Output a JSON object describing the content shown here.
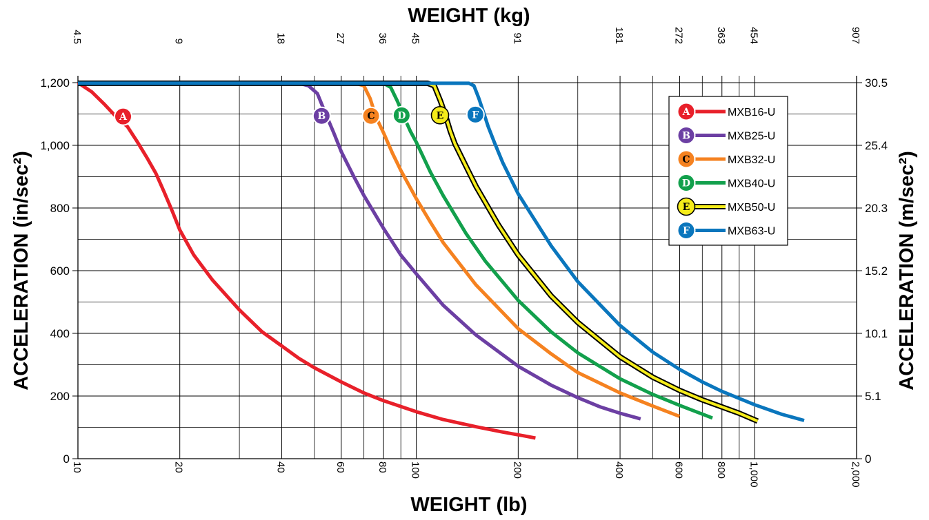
{
  "chart_data": {
    "type": "line",
    "title": "",
    "top_xlabel": "WEIGHT (kg)",
    "xlabel": "WEIGHT (lb)",
    "ylabel": "ACCELERATION (in/sec²)",
    "ylabel_right": "ACCELERATION (m/sec²)",
    "x_scale": "log",
    "xlim": [
      10,
      2000
    ],
    "ylim": [
      0,
      1200
    ],
    "grid": true,
    "legend_position": "top-right",
    "x_ticks_bottom": [
      {
        "value": 10,
        "label": "10"
      },
      {
        "value": 20,
        "label": "20"
      },
      {
        "value": 40,
        "label": "40"
      },
      {
        "value": 60,
        "label": "60"
      },
      {
        "value": 80,
        "label": "80"
      },
      {
        "value": 100,
        "label": "100"
      },
      {
        "value": 200,
        "label": "200"
      },
      {
        "value": 400,
        "label": "400"
      },
      {
        "value": 600,
        "label": "600"
      },
      {
        "value": 800,
        "label": "800"
      },
      {
        "value": 1000,
        "label": "1,000"
      },
      {
        "value": 2000,
        "label": "2,000"
      }
    ],
    "x_ticks_top": [
      {
        "value": 10,
        "label": "4.5"
      },
      {
        "value": 20,
        "label": "9"
      },
      {
        "value": 40,
        "label": "18"
      },
      {
        "value": 60,
        "label": "27"
      },
      {
        "value": 80,
        "label": "36"
      },
      {
        "value": 100,
        "label": "45"
      },
      {
        "value": 200,
        "label": "91"
      },
      {
        "value": 400,
        "label": "181"
      },
      {
        "value": 600,
        "label": "272"
      },
      {
        "value": 800,
        "label": "363"
      },
      {
        "value": 1000,
        "label": "454"
      },
      {
        "value": 2000,
        "label": "907"
      }
    ],
    "extra_vlines": [
      30,
      50,
      70,
      90,
      300,
      500,
      700,
      900
    ],
    "y_ticks_left": [
      {
        "value": 0,
        "label": "0"
      },
      {
        "value": 200,
        "label": "200"
      },
      {
        "value": 400,
        "label": "400"
      },
      {
        "value": 600,
        "label": "600"
      },
      {
        "value": 800,
        "label": "800"
      },
      {
        "value": 1000,
        "label": "1,000"
      },
      {
        "value": 1200,
        "label": "1,200"
      }
    ],
    "y_ticks_right": [
      {
        "value": 0,
        "label": "0"
      },
      {
        "value": 200,
        "label": "5.1"
      },
      {
        "value": 400,
        "label": "10.1"
      },
      {
        "value": 600,
        "label": "15.2"
      },
      {
        "value": 800,
        "label": "20.3"
      },
      {
        "value": 1000,
        "label": "25.4"
      },
      {
        "value": 1200,
        "label": "30.5"
      }
    ],
    "minor_y": [
      100,
      300,
      500,
      700,
      900,
      1100
    ],
    "series": [
      {
        "name": "MXB16-U",
        "badge": "A",
        "color": "#e8202a",
        "outline": "",
        "text_color": "#ffffff",
        "points": [
          [
            10,
            1200
          ],
          [
            11,
            1170
          ],
          [
            12,
            1130
          ],
          [
            13,
            1090
          ],
          [
            14,
            1060
          ],
          [
            15,
            1010
          ],
          [
            16,
            960
          ],
          [
            17,
            910
          ],
          [
            18,
            850
          ],
          [
            19,
            790
          ],
          [
            20,
            730
          ],
          [
            22,
            650
          ],
          [
            25,
            570
          ],
          [
            30,
            475
          ],
          [
            35,
            405
          ],
          [
            40,
            360
          ],
          [
            45,
            320
          ],
          [
            50,
            290
          ],
          [
            60,
            245
          ],
          [
            70,
            210
          ],
          [
            80,
            185
          ],
          [
            100,
            150
          ],
          [
            120,
            125
          ],
          [
            150,
            102
          ],
          [
            180,
            85
          ],
          [
            210,
            72
          ],
          [
            225,
            66
          ]
        ]
      },
      {
        "name": "MXB25-U",
        "badge": "B",
        "color": "#6c3fa3",
        "outline": "",
        "text_color": "#ffffff",
        "points": [
          [
            10,
            1198
          ],
          [
            45,
            1198
          ],
          [
            48,
            1190
          ],
          [
            51,
            1165
          ],
          [
            54,
            1100
          ],
          [
            57,
            1040
          ],
          [
            60,
            980
          ],
          [
            65,
            905
          ],
          [
            70,
            840
          ],
          [
            80,
            735
          ],
          [
            90,
            650
          ],
          [
            100,
            590
          ],
          [
            120,
            490
          ],
          [
            150,
            395
          ],
          [
            200,
            295
          ],
          [
            250,
            235
          ],
          [
            300,
            195
          ],
          [
            350,
            165
          ],
          [
            400,
            145
          ],
          [
            460,
            127
          ]
        ]
      },
      {
        "name": "MXB32-U",
        "badge": "C",
        "color": "#f58220",
        "outline": "",
        "text_color": "#000000",
        "points": [
          [
            10,
            1198
          ],
          [
            66,
            1198
          ],
          [
            70,
            1190
          ],
          [
            73,
            1150
          ],
          [
            76,
            1090
          ],
          [
            80,
            1040
          ],
          [
            85,
            975
          ],
          [
            90,
            920
          ],
          [
            100,
            830
          ],
          [
            110,
            755
          ],
          [
            120,
            690
          ],
          [
            150,
            555
          ],
          [
            200,
            415
          ],
          [
            250,
            335
          ],
          [
            300,
            275
          ],
          [
            400,
            210
          ],
          [
            500,
            168
          ],
          [
            600,
            135
          ]
        ]
      },
      {
        "name": "MXB40-U",
        "badge": "D",
        "color": "#12a04c",
        "outline": "",
        "text_color": "#ffffff",
        "points": [
          [
            10,
            1198
          ],
          [
            80,
            1198
          ],
          [
            84,
            1185
          ],
          [
            88,
            1140
          ],
          [
            92,
            1090
          ],
          [
            96,
            1045
          ],
          [
            100,
            1010
          ],
          [
            110,
            915
          ],
          [
            120,
            840
          ],
          [
            140,
            720
          ],
          [
            160,
            630
          ],
          [
            200,
            505
          ],
          [
            250,
            405
          ],
          [
            300,
            338
          ],
          [
            400,
            255
          ],
          [
            500,
            205
          ],
          [
            600,
            170
          ],
          [
            750,
            130
          ]
        ]
      },
      {
        "name": "MXB50-U",
        "badge": "E",
        "color": "#f5ec1a",
        "outline": "#000000",
        "text_color": "#000000",
        "points": [
          [
            10,
            1198
          ],
          [
            108,
            1198
          ],
          [
            113,
            1190
          ],
          [
            118,
            1140
          ],
          [
            122,
            1095
          ],
          [
            126,
            1045
          ],
          [
            130,
            1005
          ],
          [
            140,
            935
          ],
          [
            150,
            870
          ],
          [
            175,
            745
          ],
          [
            200,
            650
          ],
          [
            250,
            520
          ],
          [
            300,
            435
          ],
          [
            400,
            325
          ],
          [
            500,
            260
          ],
          [
            600,
            218
          ],
          [
            700,
            188
          ],
          [
            800,
            165
          ],
          [
            900,
            145
          ],
          [
            1020,
            120
          ]
        ]
      },
      {
        "name": "MXB63-U",
        "badge": "F",
        "color": "#0a76bd",
        "outline": "",
        "text_color": "#ffffff",
        "points": [
          [
            10,
            1198
          ],
          [
            143,
            1198
          ],
          [
            148,
            1190
          ],
          [
            153,
            1150
          ],
          [
            158,
            1105
          ],
          [
            163,
            1060
          ],
          [
            170,
            1010
          ],
          [
            180,
            945
          ],
          [
            200,
            845
          ],
          [
            250,
            680
          ],
          [
            300,
            565
          ],
          [
            400,
            425
          ],
          [
            500,
            340
          ],
          [
            600,
            285
          ],
          [
            700,
            245
          ],
          [
            800,
            215
          ],
          [
            1000,
            172
          ],
          [
            1200,
            142
          ],
          [
            1400,
            122
          ]
        ]
      }
    ],
    "badge_positions": [
      {
        "badge": "A",
        "x": 13.6,
        "y": 1092
      },
      {
        "badge": "B",
        "x": 52.5,
        "y": 1094
      },
      {
        "badge": "C",
        "x": 73.5,
        "y": 1094
      },
      {
        "badge": "D",
        "x": 90.5,
        "y": 1096
      },
      {
        "badge": "E",
        "x": 117.5,
        "y": 1096
      },
      {
        "badge": "F",
        "x": 149.5,
        "y": 1098
      }
    ]
  }
}
